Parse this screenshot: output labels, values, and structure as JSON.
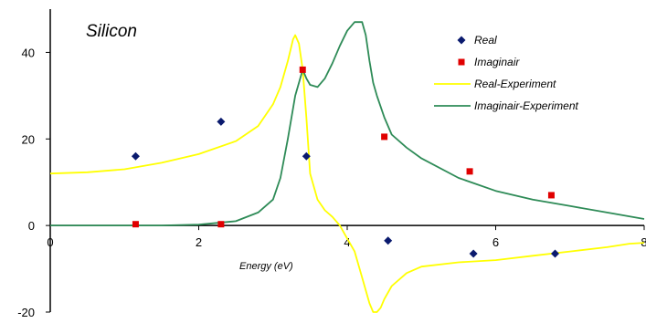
{
  "chart_data": {
    "type": "scatter",
    "title": "Silicon",
    "xlabel": "Energy (eV)",
    "ylabel": "",
    "xlim": [
      0,
      8
    ],
    "ylim": [
      -20,
      50
    ],
    "x_ticks": [
      0,
      2,
      4,
      6,
      8
    ],
    "y_ticks": [
      -20,
      0,
      20,
      40
    ],
    "grid": false,
    "legend_position": "top-right",
    "series": [
      {
        "name": "Real",
        "kind": "points",
        "marker": "diamond",
        "color": "#0a1a6e",
        "x": [
          1.15,
          2.3,
          3.45,
          4.55,
          5.7,
          6.8
        ],
        "y": [
          16,
          24,
          16,
          -3.5,
          -6.5,
          -6.5
        ]
      },
      {
        "name": "Imaginair",
        "kind": "points",
        "marker": "square",
        "color": "#e00000",
        "x": [
          1.15,
          2.3,
          3.4,
          4.5,
          5.65,
          6.75
        ],
        "y": [
          0.3,
          0.3,
          36,
          20.5,
          12.5,
          7
        ]
      },
      {
        "name": "Real-Experiment",
        "kind": "line",
        "color": "#ffff00",
        "x": [
          0,
          0.5,
          1.0,
          1.5,
          2.0,
          2.5,
          2.8,
          3.0,
          3.1,
          3.2,
          3.27,
          3.3,
          3.35,
          3.4,
          3.45,
          3.5,
          3.6,
          3.7,
          3.8,
          3.9,
          4.0,
          4.1,
          4.2,
          4.3,
          4.35,
          4.4,
          4.45,
          4.5,
          4.6,
          4.8,
          5.0,
          5.5,
          6.0,
          6.5,
          7.0,
          7.5,
          7.8,
          8.0
        ],
        "y": [
          12,
          12.3,
          13,
          14.5,
          16.5,
          19.5,
          23,
          28,
          32,
          38,
          43,
          44,
          42,
          36,
          25,
          12,
          6,
          3.5,
          2,
          0,
          -3,
          -6,
          -12,
          -18,
          -20,
          -20,
          -19,
          -17,
          -14,
          -11,
          -9.5,
          -8.5,
          -8,
          -7,
          -6,
          -5,
          -4.2,
          -4
        ]
      },
      {
        "name": "Imaginair-Experiment",
        "kind": "line",
        "color": "#2e8b57",
        "x": [
          0,
          0.5,
          1.0,
          1.5,
          2.0,
          2.5,
          2.8,
          3.0,
          3.1,
          3.2,
          3.3,
          3.4,
          3.45,
          3.5,
          3.6,
          3.7,
          3.8,
          3.9,
          4.0,
          4.1,
          4.2,
          4.25,
          4.3,
          4.35,
          4.4,
          4.5,
          4.6,
          4.8,
          5.0,
          5.5,
          6.0,
          6.5,
          7.0,
          7.5,
          8.0
        ],
        "y": [
          0,
          0,
          0,
          0,
          0.2,
          1,
          3,
          6,
          11,
          20,
          30,
          36,
          34,
          32.5,
          32,
          34,
          37.5,
          41.5,
          45,
          47,
          47,
          44,
          38,
          33,
          30,
          25,
          21,
          18,
          15.5,
          11,
          8,
          6,
          4.5,
          3,
          1.5
        ]
      }
    ]
  }
}
